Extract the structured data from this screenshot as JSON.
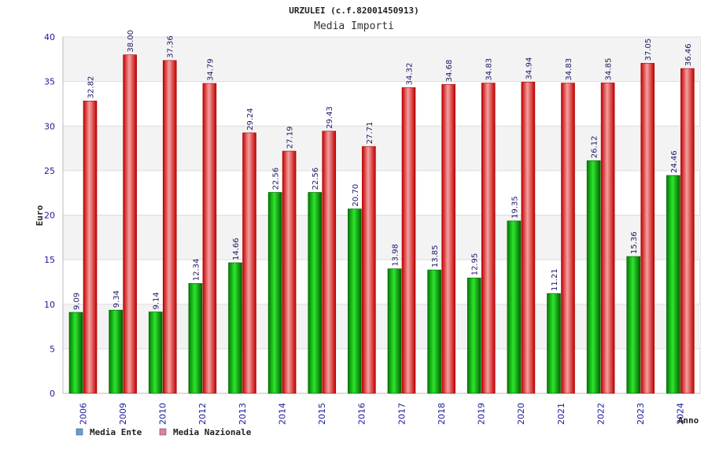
{
  "chart_data": {
    "type": "bar",
    "title": "URZULEI (c.f.82001450913)",
    "subtitle": "Media Importi",
    "xlabel": "Anno",
    "ylabel": "Euro",
    "ylim": [
      0,
      40
    ],
    "yticks": [
      0,
      5,
      10,
      15,
      20,
      25,
      30,
      35,
      40
    ],
    "grid": true,
    "legend_position": "bottom-left",
    "categories": [
      "2006",
      "2009",
      "2010",
      "2012",
      "2013",
      "2014",
      "2015",
      "2016",
      "2017",
      "2018",
      "2019",
      "2020",
      "2021",
      "2022",
      "2023",
      "2024"
    ],
    "series": [
      {
        "name": "Media Ente",
        "color": "#00b400",
        "legend_color": "#5aa0e6",
        "values": [
          9.09,
          9.34,
          9.14,
          12.34,
          14.66,
          22.56,
          22.56,
          20.7,
          13.98,
          13.85,
          12.95,
          19.35,
          11.21,
          26.12,
          15.36,
          24.46
        ],
        "labels": [
          "9.09",
          "9.34",
          "9.14",
          "12.34",
          "14.66",
          "22.56",
          "22.56",
          "20.70",
          "13.98",
          "13.85",
          "12.95",
          "19.35",
          "11.21",
          "26.12",
          "15.36",
          "24.46"
        ]
      },
      {
        "name": "Media Nazionale",
        "color": "#e60000",
        "legend_color": "#e080a0",
        "values": [
          32.82,
          38.0,
          37.36,
          34.79,
          29.24,
          27.19,
          29.43,
          27.71,
          34.32,
          34.68,
          34.83,
          34.94,
          34.83,
          34.85,
          37.05,
          36.46
        ],
        "labels": [
          "32.82",
          "38.00",
          "37.36",
          "34.79",
          "29.24",
          "27.19",
          "29.43",
          "27.71",
          "34.32",
          "34.68",
          "34.83",
          "34.94",
          "34.83",
          "34.85",
          "37.05",
          "36.46"
        ]
      }
    ]
  }
}
